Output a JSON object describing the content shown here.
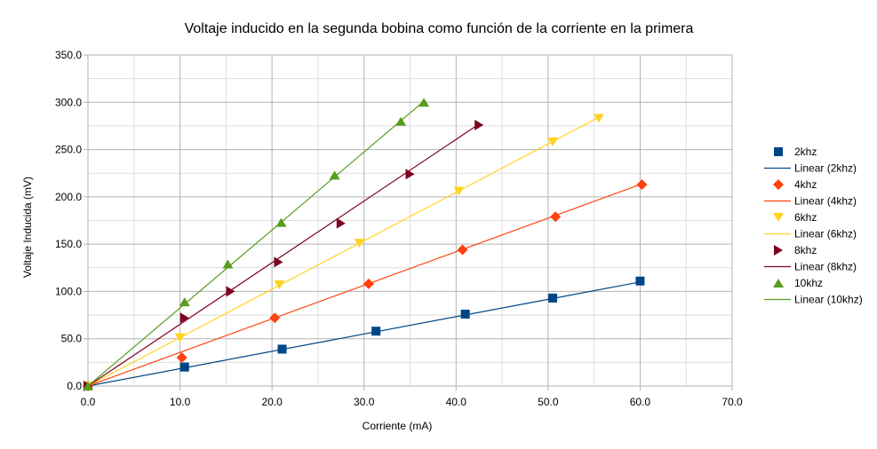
{
  "chart_data": {
    "type": "scatter",
    "title": "Voltaje inducido en la segunda bobina como función de la corriente en la primera",
    "xlabel": "Corriente (mA)",
    "ylabel": "Voltaje Inducida (mV)",
    "xlim": [
      0,
      70
    ],
    "ylim": [
      0,
      350
    ],
    "x_ticks": [
      0,
      10,
      20,
      30,
      40,
      50,
      60,
      70
    ],
    "y_ticks": [
      0,
      50,
      100,
      150,
      200,
      250,
      300,
      350
    ],
    "x_tick_labels": [
      "0.0",
      "10.0",
      "20.0",
      "30.0",
      "40.0",
      "50.0",
      "60.0",
      "70.0"
    ],
    "y_tick_labels": [
      "0.0",
      "50.0",
      "100.0",
      "150.0",
      "200.0",
      "250.0",
      "300.0",
      "350.0"
    ],
    "grid": true,
    "legend_position": "right",
    "series": [
      {
        "name": "2khz",
        "trend_name": "Linear (2khz)",
        "color": "#004586",
        "marker": "square",
        "trend_slope": 1.833,
        "points": [
          [
            0,
            0
          ],
          [
            10.5,
            20
          ],
          [
            21.1,
            39
          ],
          [
            31.3,
            58
          ],
          [
            41.0,
            76
          ],
          [
            50.5,
            93
          ],
          [
            60.0,
            111
          ]
        ]
      },
      {
        "name": "4khz",
        "trend_name": "Linear (4khz)",
        "color": "#ff420e",
        "marker": "diamond",
        "trend_slope": 3.55,
        "points": [
          [
            0,
            0
          ],
          [
            10.2,
            30
          ],
          [
            20.3,
            72
          ],
          [
            30.5,
            108
          ],
          [
            40.7,
            144
          ],
          [
            50.8,
            179
          ],
          [
            60.2,
            213
          ]
        ]
      },
      {
        "name": "6khz",
        "trend_name": "Linear (6khz)",
        "color": "#ffd320",
        "marker": "triangle-down",
        "trend_slope": 5.12,
        "points": [
          [
            0,
            0
          ],
          [
            10.0,
            51
          ],
          [
            20.8,
            107
          ],
          [
            29.5,
            151
          ],
          [
            40.3,
            206
          ],
          [
            50.5,
            258
          ],
          [
            55.5,
            283
          ]
        ]
      },
      {
        "name": "8khz",
        "trend_name": "Linear (8khz)",
        "color": "#7e0021",
        "marker": "triangle-right",
        "trend_slope": 6.52,
        "points": [
          [
            0,
            0
          ],
          [
            10.5,
            72
          ],
          [
            15.5,
            100
          ],
          [
            20.7,
            131
          ],
          [
            27.5,
            172
          ],
          [
            35.0,
            224
          ],
          [
            42.5,
            276
          ]
        ]
      },
      {
        "name": "10khz",
        "trend_name": "Linear (10khz)",
        "color": "#579d1c",
        "marker": "triangle-up",
        "trend_slope": 8.25,
        "points": [
          [
            0,
            0
          ],
          [
            10.5,
            89
          ],
          [
            15.2,
            129
          ],
          [
            21.0,
            173
          ],
          [
            26.8,
            223
          ],
          [
            34.0,
            280
          ],
          [
            36.5,
            300
          ]
        ]
      }
    ]
  }
}
